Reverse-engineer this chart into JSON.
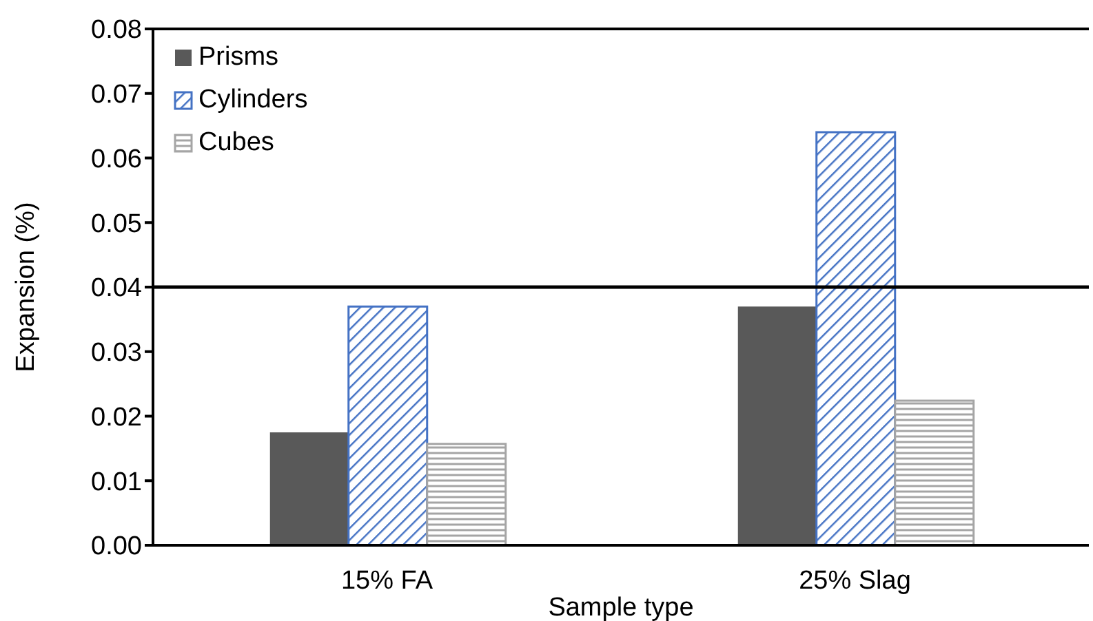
{
  "chart_data": {
    "type": "bar",
    "xlabel": "Sample type",
    "ylabel": "Expansion (%)",
    "categories": [
      "15% FA",
      "25% Slag"
    ],
    "series": [
      {
        "name": "Prisms",
        "color": "#595959",
        "values": [
          0.0175,
          0.037
        ]
      },
      {
        "name": "Cylinders",
        "color": "#4472c4",
        "values": [
          0.037,
          0.064
        ]
      },
      {
        "name": "Cubes",
        "color": "#a5a5a5",
        "values": [
          0.0157,
          0.0224
        ]
      }
    ],
    "ylim": [
      0,
      0.08
    ],
    "yticks": [
      {
        "value": 0,
        "label": "0.00"
      },
      0.01,
      0.02,
      0.03,
      0.04,
      0.05,
      0.06,
      0.07,
      0.08
    ],
    "ref_lines": [
      {
        "axis": "y",
        "value": 0.04,
        "color": "#000000"
      }
    ],
    "grid": false,
    "legend": "top left"
  }
}
